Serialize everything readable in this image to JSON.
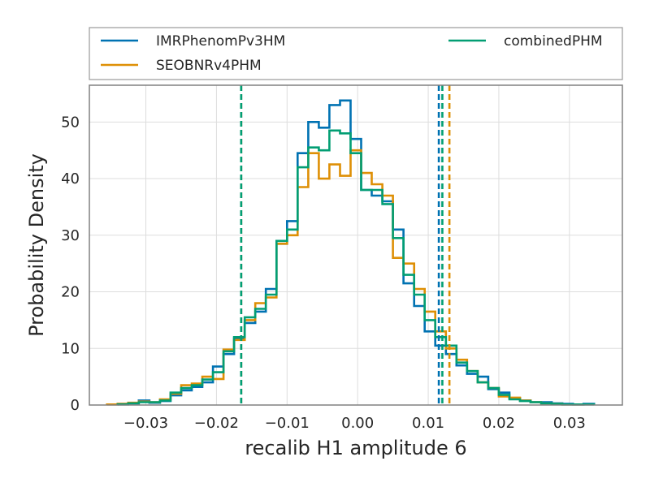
{
  "chart_data": {
    "type": "step-histogram",
    "xlabel": "recalib H1 amplitude 6",
    "ylabel": "Probability Density",
    "xlim": [
      -0.038,
      0.0375
    ],
    "ylim": [
      0,
      56.5
    ],
    "xticks": [
      -0.03,
      -0.02,
      -0.01,
      0.0,
      0.01,
      0.02,
      0.03
    ],
    "xtick_labels": [
      "−0.03",
      "−0.02",
      "−0.01",
      "0.00",
      "0.01",
      "0.02",
      "0.03"
    ],
    "yticks": [
      0,
      10,
      20,
      30,
      40,
      50
    ],
    "ytick_labels": [
      "0",
      "10",
      "20",
      "30",
      "40",
      "50"
    ],
    "grid": true,
    "legend_placement": "above plot, two columns",
    "series": [
      {
        "name": "IMRPhenomPv3HM",
        "color": "#0072b2",
        "edges": [
          -0.034,
          -0.0325,
          -0.031,
          -0.0295,
          -0.028,
          -0.0265,
          -0.025,
          -0.0235,
          -0.022,
          -0.0205,
          -0.019,
          -0.0175,
          -0.016,
          -0.0145,
          -0.013,
          -0.0115,
          -0.01,
          -0.0085,
          -0.007,
          -0.0055,
          -0.004,
          -0.0025,
          -0.001,
          0.0005,
          0.002,
          0.0035,
          0.005,
          0.0065,
          0.008,
          0.0095,
          0.011,
          0.0125,
          0.014,
          0.0155,
          0.017,
          0.0185,
          0.02,
          0.0215,
          0.023,
          0.0245,
          0.026,
          0.0275,
          0.029,
          0.0305,
          0.032,
          0.0335
        ],
        "density": [
          0.2,
          0.3,
          0.8,
          0.4,
          0.7,
          1.7,
          2.6,
          3.2,
          4.0,
          6.8,
          9.0,
          11.8,
          14.5,
          16.5,
          20.5,
          28.5,
          32.5,
          44.5,
          50.0,
          49.0,
          53.0,
          53.8,
          47.0,
          38.0,
          37.0,
          36.0,
          31.0,
          21.5,
          17.5,
          13.0,
          10.5,
          9.0,
          7.0,
          5.5,
          5.0,
          2.8,
          2.2,
          1.2,
          0.8,
          0.5,
          0.5,
          0.3,
          0.2,
          0.1,
          0.2
        ],
        "interval": [
          -0.0165,
          0.0115
        ]
      },
      {
        "name": "SEOBNRv4PHM",
        "color": "#de8f05",
        "edges": [
          -0.0355,
          -0.034,
          -0.0325,
          -0.031,
          -0.0295,
          -0.028,
          -0.0265,
          -0.025,
          -0.0235,
          -0.022,
          -0.0205,
          -0.019,
          -0.0175,
          -0.016,
          -0.0145,
          -0.013,
          -0.0115,
          -0.01,
          -0.0085,
          -0.007,
          -0.0055,
          -0.004,
          -0.0025,
          -0.001,
          0.0005,
          0.002,
          0.0035,
          0.005,
          0.0065,
          0.008,
          0.0095,
          0.011,
          0.0125,
          0.014,
          0.0155,
          0.017,
          0.0185,
          0.02,
          0.0215,
          0.023,
          0.0245,
          0.026,
          0.0275,
          0.029,
          0.0305,
          0.032
        ],
        "density": [
          0.1,
          0.2,
          0.4,
          0.6,
          0.5,
          1.0,
          2.0,
          3.5,
          3.8,
          5.0,
          4.6,
          9.8,
          11.5,
          15.0,
          18.0,
          19.0,
          28.5,
          30.0,
          38.5,
          44.5,
          40.0,
          42.5,
          40.5,
          45.0,
          41.0,
          39.0,
          37.0,
          26.0,
          25.0,
          20.5,
          16.5,
          13.0,
          10.0,
          8.0,
          6.0,
          4.0,
          3.0,
          1.5,
          1.3,
          0.8,
          0.5,
          0.3,
          0.2,
          0.1,
          0.1
        ],
        "interval": [
          -0.0165,
          0.013
        ]
      },
      {
        "name": "combinedPHM",
        "color": "#029e73",
        "edges": [
          -0.034,
          -0.0325,
          -0.031,
          -0.0295,
          -0.028,
          -0.0265,
          -0.025,
          -0.0235,
          -0.022,
          -0.0205,
          -0.019,
          -0.0175,
          -0.016,
          -0.0145,
          -0.013,
          -0.0115,
          -0.01,
          -0.0085,
          -0.007,
          -0.0055,
          -0.004,
          -0.0025,
          -0.001,
          0.0005,
          0.002,
          0.0035,
          0.005,
          0.0065,
          0.008,
          0.0095,
          0.011,
          0.0125,
          0.014,
          0.0155,
          0.017,
          0.0185,
          0.02,
          0.0215,
          0.023,
          0.0245,
          0.026,
          0.0275,
          0.029,
          0.0305,
          0.032,
          0.0335
        ],
        "density": [
          0.1,
          0.3,
          0.5,
          0.5,
          0.8,
          2.2,
          3.0,
          3.5,
          4.5,
          5.8,
          9.5,
          12.0,
          15.5,
          17.0,
          19.5,
          29.0,
          31.0,
          42.0,
          45.5,
          45.0,
          48.5,
          48.0,
          44.5,
          38.0,
          38.0,
          35.5,
          29.5,
          23.0,
          19.5,
          15.0,
          12.0,
          10.5,
          7.5,
          6.0,
          4.0,
          3.0,
          1.8,
          1.0,
          0.7,
          0.5,
          0.3,
          0.2,
          0.1,
          0.1,
          0.1
        ],
        "interval": [
          -0.0165,
          0.012
        ]
      }
    ]
  }
}
